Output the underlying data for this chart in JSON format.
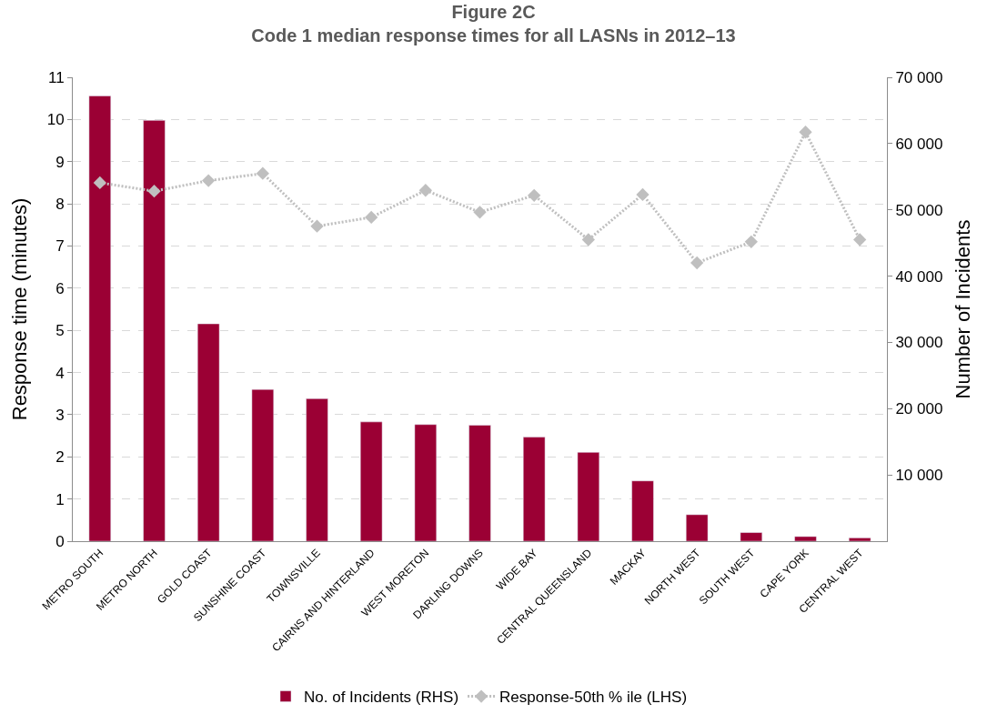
{
  "chart_data": {
    "type": "bar",
    "title": "Figure 2C",
    "subtitle": "Code 1 median response times for all LASNs in 2012–13",
    "ylabel": "Response time (minutes)",
    "y2label": "Number of Incidents",
    "categories": [
      "METRO SOUTH",
      "METRO NORTH",
      "GOLD COAST",
      "SUNSHINE COAST",
      "TOWNSVILLE",
      "CAIRNS AND HINTERLAND",
      "WEST MORETON",
      "DARLING DOWNS",
      "WIDE BAY",
      "CENTRAL QUEENSLAND",
      "MACKAY",
      "NORTH WEST",
      "SOUTH WEST",
      "CAPE YORK",
      "CENTRAL WEST"
    ],
    "series": [
      {
        "name": "No. of Incidents (RHS)",
        "axis": "y2",
        "color": "#9b0034",
        "values": [
          67200,
          63500,
          32800,
          22900,
          21500,
          18000,
          17600,
          17500,
          15700,
          13400,
          9100,
          4000,
          1300,
          700,
          500
        ]
      },
      {
        "name": "Response-50th % ile (LHS)",
        "type": "line",
        "color": "#bfbfbf",
        "marker": "diamond",
        "line_style": "dotted",
        "values": [
          8.5,
          8.3,
          8.55,
          8.72,
          7.47,
          7.68,
          8.32,
          7.8,
          8.2,
          7.15,
          8.22,
          6.6,
          7.1,
          9.7,
          7.15
        ]
      }
    ],
    "ylim": [
      0,
      11
    ],
    "yticks": [
      0,
      1,
      2,
      3,
      4,
      5,
      6,
      7,
      8,
      9,
      10,
      11
    ],
    "y2lim": [
      0,
      70000
    ],
    "y2ticks": [
      {
        "value": 10000,
        "label": "10 000"
      },
      {
        "value": 20000,
        "label": "20 000"
      },
      {
        "value": 30000,
        "label": "30 000"
      },
      {
        "value": 40000,
        "label": "40 000"
      },
      {
        "value": 50000,
        "label": "50 000"
      },
      {
        "value": 60000,
        "label": "60 000"
      },
      {
        "value": 70000,
        "label": "70 000"
      }
    ],
    "grid": "y",
    "legend": "bottom"
  }
}
